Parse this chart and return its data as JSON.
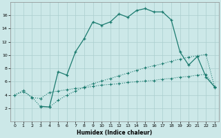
{
  "title": "",
  "xlabel": "Humidex (Indice chaleur)",
  "bg_color": "#cce8e8",
  "line_color": "#1a7a6e",
  "grid_color": "#aacece",
  "xlim": [
    -0.5,
    23.5
  ],
  "ylim": [
    0,
    18
  ],
  "xticks": [
    0,
    1,
    2,
    3,
    4,
    5,
    6,
    7,
    8,
    9,
    10,
    11,
    12,
    13,
    14,
    15,
    16,
    17,
    18,
    19,
    20,
    21,
    22,
    23
  ],
  "yticks": [
    2,
    4,
    6,
    8,
    10,
    12,
    14,
    16
  ],
  "line1_x": [
    0,
    1,
    2,
    3,
    4,
    5,
    6,
    7,
    8,
    9,
    10,
    11,
    12,
    13,
    14,
    15,
    16,
    17,
    18,
    19,
    20,
    21,
    22,
    23
  ],
  "line1_y": [
    4.0,
    4.7,
    3.6,
    3.5,
    4.4,
    4.6,
    4.8,
    5.0,
    5.1,
    5.3,
    5.5,
    5.6,
    5.7,
    5.9,
    6.0,
    6.1,
    6.2,
    6.4,
    6.5,
    6.7,
    6.8,
    7.0,
    7.1,
    5.2
  ],
  "line2_x": [
    0,
    1,
    2,
    3,
    4,
    5,
    6,
    7,
    8,
    9,
    10,
    11,
    12,
    13,
    14,
    15,
    16,
    17,
    18,
    19,
    20,
    21,
    22,
    23
  ],
  "line2_y": [
    4.0,
    4.5,
    3.7,
    2.2,
    2.2,
    3.2,
    4.0,
    4.6,
    5.2,
    5.7,
    6.1,
    6.5,
    6.9,
    7.3,
    7.7,
    8.1,
    8.4,
    8.7,
    9.1,
    9.4,
    9.7,
    9.9,
    10.1,
    5.1
  ],
  "line3_x": [
    3,
    4,
    5,
    6,
    7,
    8,
    9,
    10,
    11,
    12,
    13,
    14,
    15,
    16,
    17,
    18,
    19,
    20,
    21,
    22,
    23
  ],
  "line3_y": [
    2.3,
    2.2,
    7.5,
    7.0,
    10.5,
    12.5,
    15.0,
    14.5,
    15.0,
    16.2,
    15.7,
    16.7,
    17.0,
    16.5,
    16.5,
    15.3,
    10.5,
    8.5,
    9.8,
    6.7,
    5.2
  ]
}
